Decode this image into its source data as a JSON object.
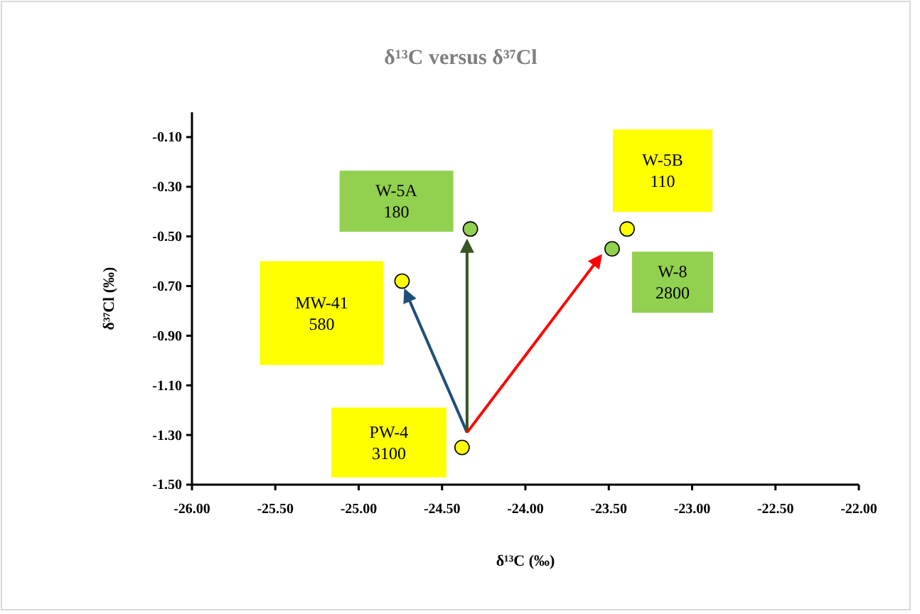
{
  "chart_data": {
    "type": "scatter",
    "title": "δ¹³C versus δ³⁷Cl",
    "xlabel": "δ¹³C (‰)",
    "ylabel": "δ³⁷Cl (‰)",
    "xlim": [
      -26,
      -22
    ],
    "ylim": [
      -1.5,
      0
    ],
    "xticks": [
      {
        "value": -26,
        "label": "-26.00"
      },
      {
        "value": -25.5,
        "label": "-25.50"
      },
      {
        "value": -25,
        "label": "-25.00"
      },
      {
        "value": -24.5,
        "label": "-24.50"
      },
      {
        "value": -24,
        "label": "-24.00"
      },
      {
        "value": -23.5,
        "label": "-23.50"
      },
      {
        "value": -23,
        "label": "-23.00"
      },
      {
        "value": -22.5,
        "label": "-22.50"
      },
      {
        "value": -22,
        "label": "-22.00"
      }
    ],
    "yticks": [
      {
        "value": -1.5,
        "label": "-1.50"
      },
      {
        "value": -1.3,
        "label": "-1.30"
      },
      {
        "value": -1.1,
        "label": "-1.10"
      },
      {
        "value": -0.9,
        "label": "-0.90"
      },
      {
        "value": -0.7,
        "label": "-0.70"
      },
      {
        "value": -0.5,
        "label": "-0.50"
      },
      {
        "value": -0.3,
        "label": "-0.30"
      },
      {
        "value": -0.1,
        "label": "-0.10"
      }
    ],
    "grid": false,
    "annotations": [
      "PW-4\n3100",
      "MW-41\n580",
      "W-5A\n180",
      "W-5B\n110",
      "W-8\n2800"
    ],
    "series": [
      {
        "type": "line",
        "color": "#1f4e79",
        "x": [
          -24.35,
          -24.72
        ],
        "values": [
          -1.29,
          -0.72
        ],
        "marker": "none"
      },
      {
        "type": "line",
        "color": "#375623",
        "x": [
          -24.35,
          -24.35
        ],
        "values": [
          -1.29,
          -0.52
        ],
        "marker": "none"
      },
      {
        "type": "line",
        "color": "#ff0000",
        "x": [
          -24.35,
          -23.55
        ],
        "values": [
          -1.29,
          -0.58
        ],
        "marker": "none"
      },
      {
        "marker": "circle",
        "colors": [
          "#ffff00",
          "#ffff00",
          "#92d050",
          "#ffff00",
          "#92d050"
        ],
        "x": [
          -24.38,
          -24.74,
          -24.33,
          -23.39,
          -23.48
        ],
        "values": [
          -1.35,
          -0.68,
          -0.47,
          -0.47,
          -0.55
        ]
      }
    ]
  }
}
